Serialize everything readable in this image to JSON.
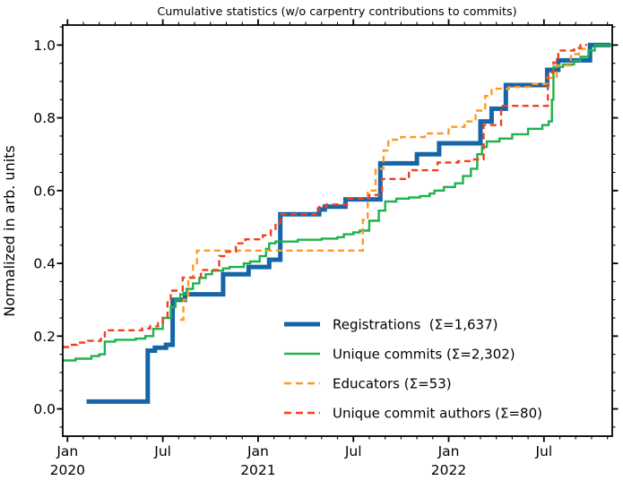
{
  "chart_data": {
    "type": "line",
    "title": "Cumulative statistics (w/o carpentry contributions to commits)",
    "xlabel": "",
    "ylabel": "Normalized in arb. units",
    "x_unit": "months since Jan 2020",
    "xlim": [
      -0.3,
      34.3
    ],
    "ylim": [
      -0.075,
      1.055
    ],
    "grid": false,
    "legend_position": "lower-right-inside",
    "axis_color": "#000000",
    "x_major_ticks": [
      {
        "m": 0,
        "label": "Jan",
        "year": "2020"
      },
      {
        "m": 6,
        "label": "Jul",
        "year": ""
      },
      {
        "m": 12,
        "label": "Jan",
        "year": "2021"
      },
      {
        "m": 18,
        "label": "Jul",
        "year": ""
      },
      {
        "m": 24,
        "label": "Jan",
        "year": "2022"
      },
      {
        "m": 30,
        "label": "Jul",
        "year": ""
      }
    ],
    "x_minor_step": 1,
    "y_major_ticks": [
      0.0,
      0.2,
      0.4,
      0.6,
      0.8,
      1.0
    ],
    "y_minor_step": 0.05,
    "series": [
      {
        "name": "Registrations  (Σ=1,637)",
        "sigma_label": "Σ=1,637",
        "color": "#1565a8",
        "width": 5,
        "dash": null,
        "points": [
          [
            1.2,
            0.02
          ],
          [
            5.05,
            0.16
          ],
          [
            5.5,
            0.168
          ],
          [
            6.2,
            0.176
          ],
          [
            6.62,
            0.3
          ],
          [
            7.4,
            0.315
          ],
          [
            9.8,
            0.37
          ],
          [
            11.4,
            0.39
          ],
          [
            12.7,
            0.41
          ],
          [
            13.4,
            0.535
          ],
          [
            15.85,
            0.548
          ],
          [
            16.2,
            0.556
          ],
          [
            17.5,
            0.576
          ],
          [
            19.7,
            0.675
          ],
          [
            22.0,
            0.7
          ],
          [
            23.4,
            0.73
          ],
          [
            26.0,
            0.79
          ],
          [
            26.7,
            0.825
          ],
          [
            27.6,
            0.89
          ],
          [
            30.2,
            0.932
          ],
          [
            30.9,
            0.958
          ],
          [
            32.9,
            1.0
          ],
          [
            34.2,
            1.0
          ]
        ]
      },
      {
        "name": "Unique commits (Σ=2,302)",
        "sigma_label": "Σ=2,302",
        "color": "#1eb24b",
        "width": 2.4,
        "dash": null,
        "points": [
          [
            -0.3,
            0.133
          ],
          [
            0.5,
            0.138
          ],
          [
            1.5,
            0.145
          ],
          [
            2.0,
            0.15
          ],
          [
            2.35,
            0.185
          ],
          [
            3.0,
            0.19
          ],
          [
            4.3,
            0.193
          ],
          [
            4.9,
            0.2
          ],
          [
            5.4,
            0.22
          ],
          [
            6.0,
            0.25
          ],
          [
            6.5,
            0.28
          ],
          [
            6.8,
            0.3
          ],
          [
            7.1,
            0.315
          ],
          [
            7.5,
            0.33
          ],
          [
            7.9,
            0.345
          ],
          [
            8.3,
            0.36
          ],
          [
            8.7,
            0.37
          ],
          [
            9.1,
            0.38
          ],
          [
            9.8,
            0.386
          ],
          [
            10.2,
            0.39
          ],
          [
            11.1,
            0.4
          ],
          [
            11.5,
            0.405
          ],
          [
            12.1,
            0.42
          ],
          [
            12.5,
            0.44
          ],
          [
            12.7,
            0.455
          ],
          [
            13.1,
            0.46
          ],
          [
            14.5,
            0.465
          ],
          [
            16.0,
            0.468
          ],
          [
            17.0,
            0.472
          ],
          [
            17.4,
            0.48
          ],
          [
            18.0,
            0.485
          ],
          [
            18.4,
            0.49
          ],
          [
            19.0,
            0.517
          ],
          [
            19.6,
            0.545
          ],
          [
            20.0,
            0.57
          ],
          [
            20.7,
            0.578
          ],
          [
            21.5,
            0.581
          ],
          [
            22.2,
            0.585
          ],
          [
            22.8,
            0.592
          ],
          [
            23.1,
            0.6
          ],
          [
            23.7,
            0.61
          ],
          [
            24.4,
            0.62
          ],
          [
            24.9,
            0.64
          ],
          [
            25.4,
            0.66
          ],
          [
            25.8,
            0.7
          ],
          [
            26.1,
            0.72
          ],
          [
            26.4,
            0.735
          ],
          [
            27.2,
            0.743
          ],
          [
            28.0,
            0.755
          ],
          [
            29.0,
            0.77
          ],
          [
            29.9,
            0.78
          ],
          [
            30.3,
            0.79
          ],
          [
            30.5,
            0.85
          ],
          [
            30.6,
            0.94
          ],
          [
            31.2,
            0.947
          ],
          [
            31.9,
            0.957
          ],
          [
            32.3,
            0.968
          ],
          [
            32.8,
            0.985
          ],
          [
            33.2,
            1.0
          ],
          [
            34.4,
            1.0
          ]
        ]
      },
      {
        "name": "Educators (Σ=53)",
        "sigma_label": "Σ=53",
        "color": "#ff9922",
        "width": 2.4,
        "dash": [
          7,
          4.5
        ],
        "points": [
          [
            7.1,
            0.245
          ],
          [
            7.3,
            0.3
          ],
          [
            7.6,
            0.36
          ],
          [
            7.9,
            0.4
          ],
          [
            8.15,
            0.435
          ],
          [
            18.45,
            0.435
          ],
          [
            18.6,
            0.52
          ],
          [
            18.9,
            0.6
          ],
          [
            19.4,
            0.66
          ],
          [
            19.9,
            0.71
          ],
          [
            20.2,
            0.74
          ],
          [
            21.0,
            0.747
          ],
          [
            22.5,
            0.757
          ],
          [
            24.0,
            0.775
          ],
          [
            25.0,
            0.79
          ],
          [
            25.7,
            0.82
          ],
          [
            26.3,
            0.86
          ],
          [
            26.7,
            0.88
          ],
          [
            27.8,
            0.885
          ],
          [
            29.2,
            0.893
          ],
          [
            30.2,
            0.91
          ],
          [
            30.8,
            0.944
          ],
          [
            31.7,
            0.975
          ],
          [
            32.2,
            0.99
          ],
          [
            32.6,
            1.0
          ]
        ]
      },
      {
        "name": "Unique commit authors (Σ=80)",
        "sigma_label": "Σ=80",
        "color": "#f33f1c",
        "width": 2.4,
        "dash": [
          7,
          4.5
        ],
        "points": [
          [
            -0.3,
            0.17
          ],
          [
            0.2,
            0.176
          ],
          [
            0.6,
            0.182
          ],
          [
            1.3,
            0.187
          ],
          [
            2.1,
            0.192
          ],
          [
            2.35,
            0.21
          ],
          [
            2.6,
            0.216
          ],
          [
            4.7,
            0.221
          ],
          [
            5.2,
            0.227
          ],
          [
            5.7,
            0.236
          ],
          [
            6.0,
            0.25
          ],
          [
            6.3,
            0.3
          ],
          [
            6.5,
            0.325
          ],
          [
            7.25,
            0.361
          ],
          [
            8.4,
            0.382
          ],
          [
            9.55,
            0.42
          ],
          [
            10.0,
            0.432
          ],
          [
            10.6,
            0.455
          ],
          [
            11.2,
            0.466
          ],
          [
            12.3,
            0.477
          ],
          [
            12.8,
            0.49
          ],
          [
            13.1,
            0.51
          ],
          [
            13.4,
            0.535
          ],
          [
            15.85,
            0.555
          ],
          [
            16.3,
            0.562
          ],
          [
            17.6,
            0.578
          ],
          [
            19.0,
            0.588
          ],
          [
            19.8,
            0.632
          ],
          [
            21.5,
            0.656
          ],
          [
            23.3,
            0.677
          ],
          [
            24.6,
            0.681
          ],
          [
            25.6,
            0.686
          ],
          [
            26.2,
            0.78
          ],
          [
            27.3,
            0.833
          ],
          [
            30.25,
            0.925
          ],
          [
            30.6,
            0.952
          ],
          [
            30.9,
            0.985
          ],
          [
            31.9,
            0.992
          ],
          [
            32.3,
            1.0
          ],
          [
            32.7,
            1.0
          ]
        ]
      }
    ]
  }
}
